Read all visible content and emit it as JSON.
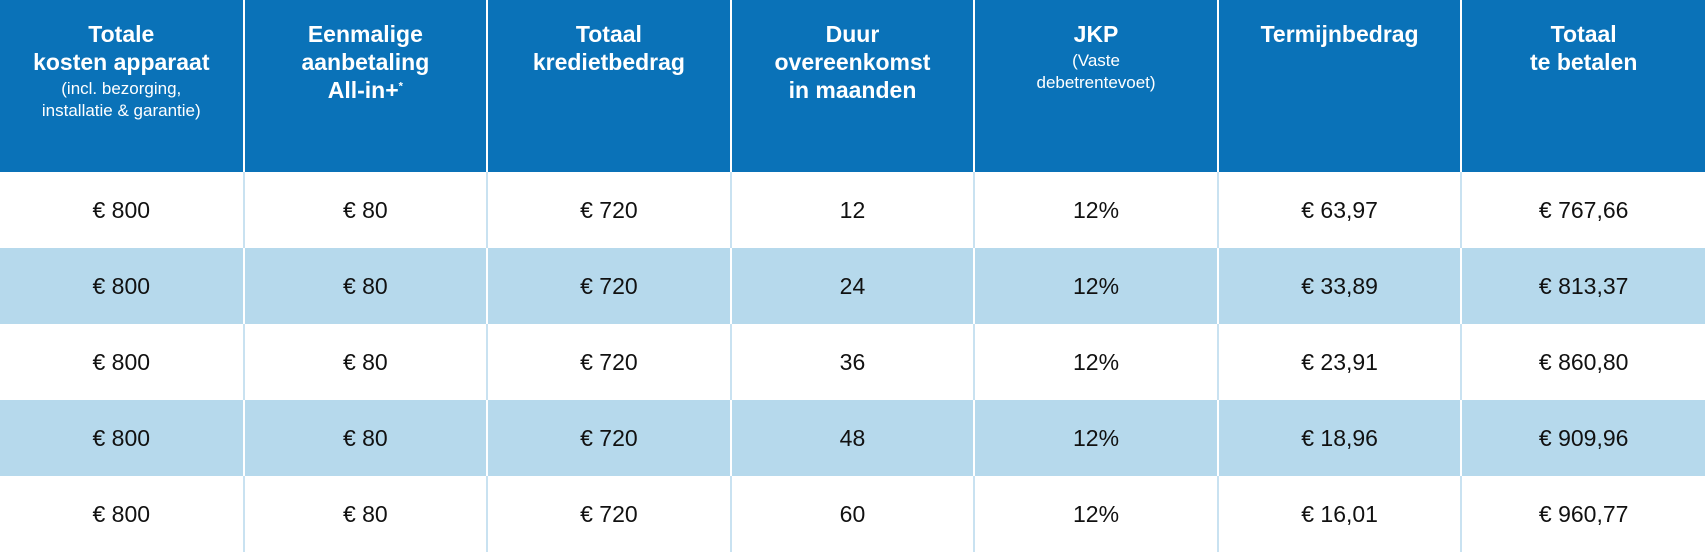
{
  "table": {
    "headers": [
      {
        "title": [
          "Totale",
          "kosten apparaat"
        ],
        "note": [
          "(incl. bezorging,",
          "installatie & garantie)"
        ]
      },
      {
        "title": [
          "Eenmalige",
          "aanbetaling",
          "All-in+"
        ],
        "sup": "*"
      },
      {
        "title": [
          "Totaal",
          "kredietbedrag"
        ]
      },
      {
        "title": [
          "Duur",
          "overeenkomst",
          "in maanden"
        ]
      },
      {
        "title": [
          "JKP"
        ],
        "note": [
          "(Vaste",
          "debetrentevoet)"
        ]
      },
      {
        "title": [
          "Termijnbedrag"
        ]
      },
      {
        "title": [
          "Totaal",
          "te betalen"
        ]
      }
    ],
    "rows": [
      [
        "€ 800",
        "€ 80",
        "€ 720",
        "12",
        "12%",
        "€ 63,97",
        "€ 767,66"
      ],
      [
        "€ 800",
        "€ 80",
        "€ 720",
        "24",
        "12%",
        "€ 33,89",
        "€ 813,37"
      ],
      [
        "€ 800",
        "€ 80",
        "€ 720",
        "36",
        "12%",
        "€ 23,91",
        "€ 860,80"
      ],
      [
        "€ 800",
        "€ 80",
        "€ 720",
        "48",
        "12%",
        "€ 18,96",
        "€ 909,96"
      ],
      [
        "€ 800",
        "€ 80",
        "€ 720",
        "60",
        "12%",
        "€ 16,01",
        "€ 960,77"
      ]
    ]
  }
}
